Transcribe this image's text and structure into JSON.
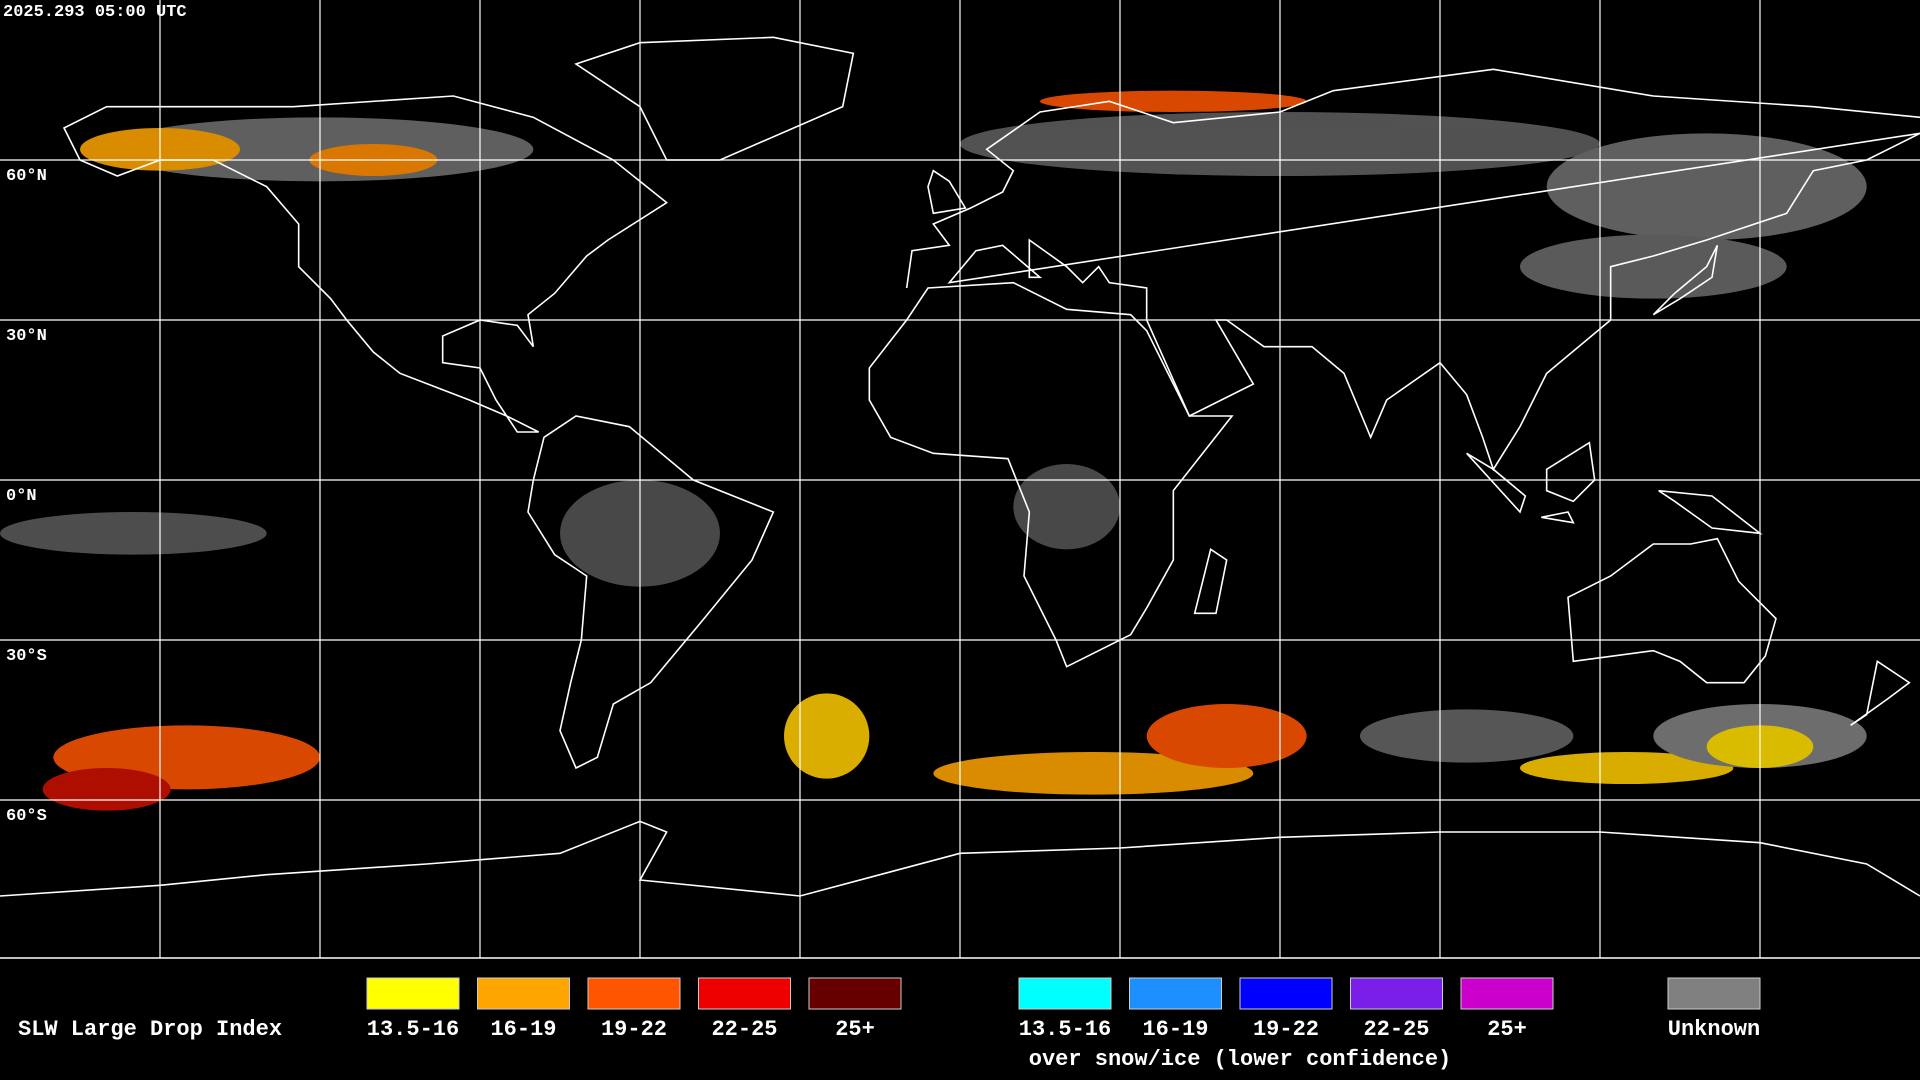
{
  "timestamp": "2025.293 05:00 UTC",
  "latitude_labels": [
    "60°N",
    "30°N",
    "0°N",
    "30°S",
    "60°S"
  ],
  "legend": {
    "title": "SLW Large Drop Index",
    "items": [
      {
        "label": "13.5-16",
        "color": "#ffff00"
      },
      {
        "label": "16-19",
        "color": "#ffa500"
      },
      {
        "label": "19-22",
        "color": "#ff5500"
      },
      {
        "label": "22-25",
        "color": "#ee0000"
      },
      {
        "label": "25+",
        "color": "#660000"
      }
    ],
    "snow_items": [
      {
        "label": "13.5-16",
        "color": "#00ffff"
      },
      {
        "label": "16-19",
        "color": "#1e8fff"
      },
      {
        "label": "19-22",
        "color": "#0000ff"
      },
      {
        "label": "22-25",
        "color": "#7a1eea"
      },
      {
        "label": "25+",
        "color": "#cc00cc"
      }
    ],
    "snow_note": "over snow/ice (lower confidence)",
    "unknown": {
      "label": "Unknown",
      "color": "#808080"
    }
  }
}
